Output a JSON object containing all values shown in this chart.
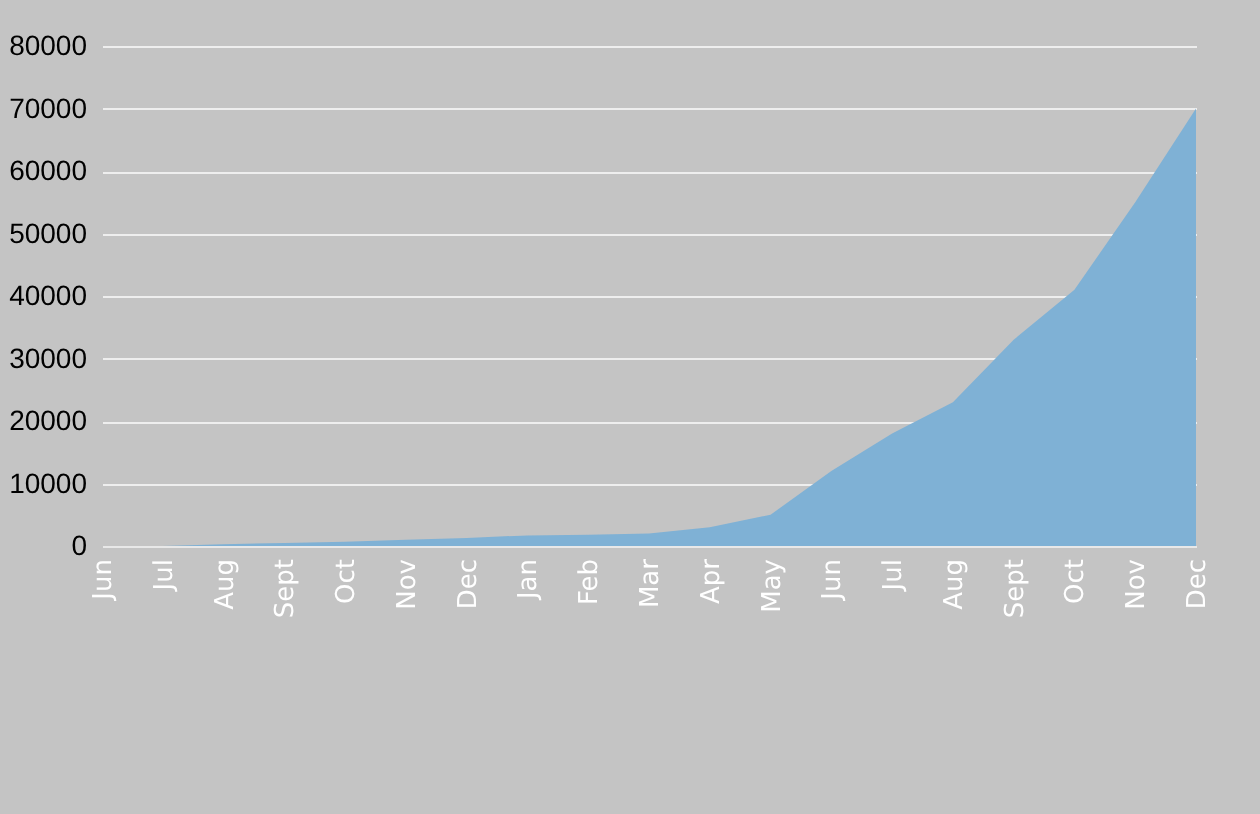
{
  "chart_data": {
    "type": "area",
    "categories": [
      "Jun",
      "Jul",
      "Aug",
      "Sept",
      "Oct",
      "Nov",
      "Dec",
      "Jan",
      "Feb",
      "Mar",
      "Apr",
      "May",
      "Jun",
      "Jul",
      "Aug",
      "Sept",
      "Oct",
      "Nov",
      "Dec"
    ],
    "series": [
      {
        "color": "#7fb1d5",
        "values": [
          0,
          0,
          300,
          500,
          700,
          1000,
          1300,
          1700,
          1800,
          2000,
          3000,
          5000,
          12000,
          18000,
          23000,
          33000,
          41000,
          55000,
          70000
        ]
      }
    ],
    "ylim": [
      0,
      80000
    ],
    "yticks": [
      0,
      10000,
      20000,
      30000,
      40000,
      50000,
      60000,
      70000,
      80000
    ],
    "grid": "y"
  }
}
